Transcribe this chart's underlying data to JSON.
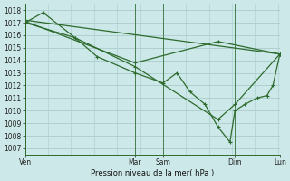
{
  "background_color": "#cce8e8",
  "grid_color": "#b0d0d0",
  "line_color": "#2d6b2d",
  "ylabel_bottom": "Pression niveau de la mer( hPa )",
  "ylim": [
    1006.5,
    1018.5
  ],
  "yticks": [
    1007,
    1008,
    1009,
    1010,
    1011,
    1012,
    1013,
    1014,
    1015,
    1016,
    1017,
    1018
  ],
  "xlim": [
    0,
    255
  ],
  "xtick_positions": [
    0,
    110,
    138,
    210,
    255
  ],
  "xtick_labels": [
    "Ven",
    "Mar",
    "Sam",
    "Dim",
    "Lun"
  ],
  "vline_positions": [
    0,
    110,
    138,
    210,
    255
  ],
  "lines": [
    {
      "x": [
        0,
        18,
        50,
        72,
        110,
        138,
        152,
        165,
        180,
        193,
        205,
        210,
        220,
        232,
        242,
        248,
        255
      ],
      "y": [
        1017.0,
        1017.8,
        1015.8,
        1014.3,
        1013.0,
        1012.2,
        1013.0,
        1011.5,
        1010.5,
        1008.7,
        1007.5,
        1010.0,
        1010.5,
        1011.0,
        1011.2,
        1012.0,
        1014.5
      ],
      "has_markers": true
    },
    {
      "x": [
        0,
        50,
        110,
        193,
        210,
        255
      ],
      "y": [
        1017.0,
        1015.8,
        1013.5,
        1009.3,
        1010.5,
        1014.5
      ],
      "has_markers": true
    },
    {
      "x": [
        0,
        110,
        193,
        255
      ],
      "y": [
        1017.1,
        1013.8,
        1015.5,
        1014.5
      ],
      "has_markers": true
    },
    {
      "x": [
        0,
        255
      ],
      "y": [
        1017.2,
        1014.5
      ],
      "has_markers": false
    }
  ]
}
